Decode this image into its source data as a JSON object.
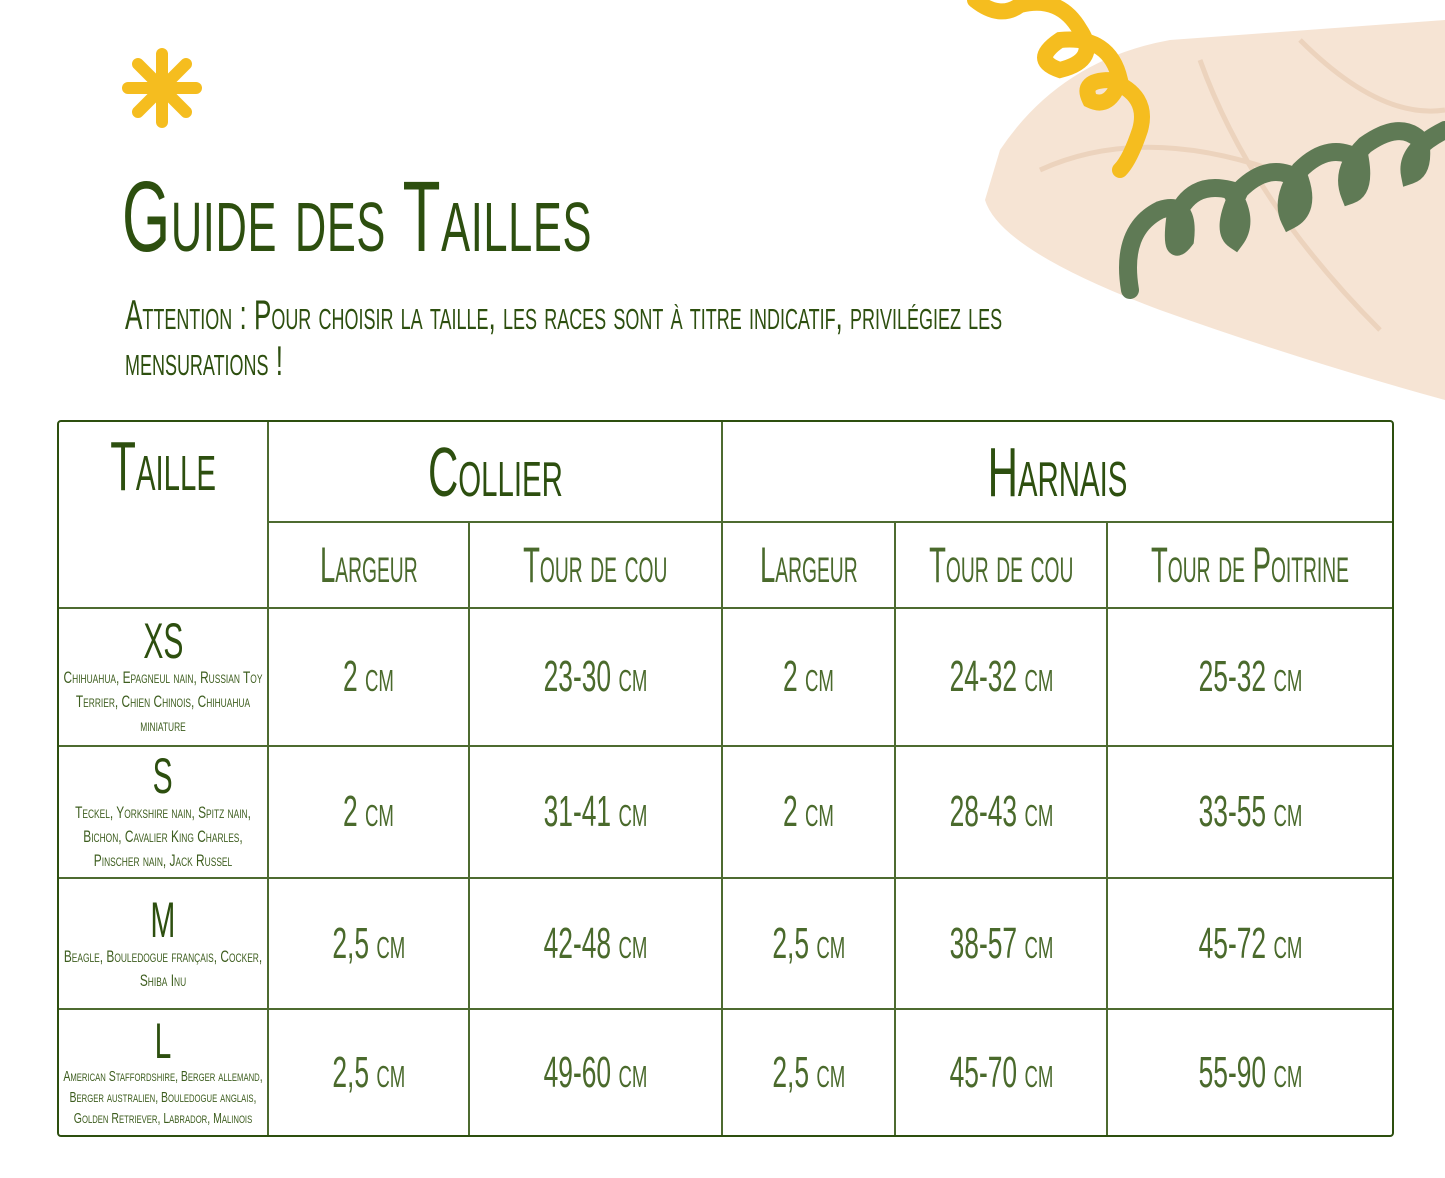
{
  "title": "Guide des Tailles",
  "subtitle": "Attention : Pour choisir la taille, les races sont à titre indicatif, privilégiez les mensurations !",
  "colors": {
    "text": "#2d4f0f",
    "accent_yellow": "#f5bd1f",
    "accent_green": "#5f7a55",
    "beige": "#f6e4d4"
  },
  "table": {
    "header": {
      "taille": "Taille",
      "collier": "Collier",
      "harnais": "Harnais"
    },
    "subheaders": [
      "Largeur",
      "Tour de cou",
      "Largeur",
      "Tour de cou",
      "Tour de Poitrine"
    ],
    "rows": [
      {
        "size": "XS",
        "breeds": "Chihuahua, Epagneul nain, Russian Toy Terrier, Chien Chinois, Chihuahua miniature",
        "values": [
          "2 cm",
          "23-30 cm",
          "2 cm",
          "24-32 cm",
          "25-32 cm"
        ]
      },
      {
        "size": "S",
        "breeds": "Teckel, Yorkshire nain, Spitz nain, Bichon, Cavalier King Charles, Pinscher nain, Jack Russel",
        "values": [
          "2 cm",
          "31-41 cm",
          "2 cm",
          "28-43 cm",
          "33-55 cm"
        ]
      },
      {
        "size": "M",
        "breeds": "Beagle, Bouledogue français, Cocker, Shiba Inu",
        "values": [
          "2,5 cm",
          "42-48 cm",
          "2,5 cm",
          "38-57 cm",
          "45-72 cm"
        ]
      },
      {
        "size": "L",
        "breeds": "American Staffordshire, Berger allemand, Berger australien, Bouledogue anglais, Golden Retriever, Labrador, Malinois",
        "values": [
          "2,5 cm",
          "49-60 cm",
          "2,5 cm",
          "45-70 cm",
          "55-90 cm"
        ]
      }
    ]
  }
}
